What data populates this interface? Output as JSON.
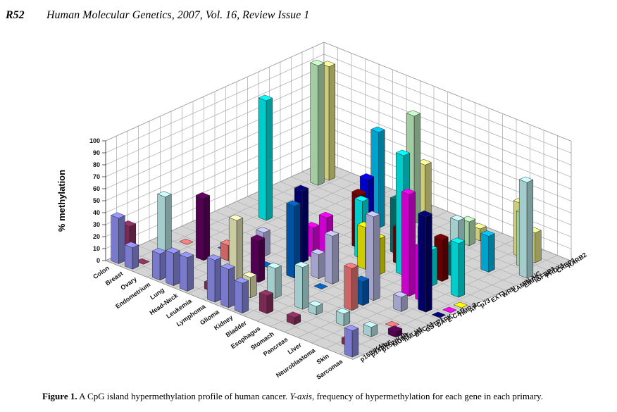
{
  "header": {
    "page": "R52",
    "journal": "Human Molecular Genetics, 2007, Vol. 16, Review Issue 1"
  },
  "chart_data": {
    "type": "bar3d",
    "y_label": "% methylation",
    "ylim": [
      0,
      100
    ],
    "yticks": [
      0,
      10,
      20,
      30,
      40,
      50,
      60,
      70,
      80,
      90,
      100
    ],
    "categories": [
      "Colon",
      "Breast",
      "Ovary",
      "Endometrium",
      "Lung",
      "Head-Neck",
      "Leukemia",
      "Lymphoma",
      "Glioma",
      "Kidney",
      "Bladder",
      "Esophagus",
      "Stomach",
      "Pancreas",
      "Liver",
      "Neuroblastoma",
      "Skin",
      "Sarcomas"
    ],
    "series": [
      {
        "name": "p16INK4a",
        "color": "#9999ff",
        "values": [
          38,
          18,
          null,
          22,
          27,
          28,
          null,
          35,
          32,
          25,
          null,
          null,
          null,
          null,
          null,
          null,
          null,
          22
        ]
      },
      {
        "name": "p14ARF",
        "color": "#993366",
        "values": [
          27,
          0,
          null,
          null,
          null,
          null,
          6,
          null,
          null,
          null,
          15,
          null,
          6,
          null,
          null,
          null,
          5,
          null
        ]
      },
      {
        "name": "p15INK4b",
        "color": "#ffffcc",
        "values": [
          null,
          null,
          0,
          null,
          null,
          null,
          null,
          60,
          17,
          null,
          null,
          null,
          null,
          null,
          null,
          null,
          null,
          null
        ]
      },
      {
        "name": "MGMT",
        "color": "#ccffff",
        "values": [
          null,
          48,
          null,
          null,
          null,
          null,
          null,
          null,
          null,
          25,
          null,
          35,
          7,
          null,
          10,
          null,
          8,
          null
        ]
      },
      {
        "name": "hMLH1",
        "color": "#660066",
        "values": [
          null,
          null,
          null,
          52,
          null,
          null,
          null,
          35,
          null,
          null,
          null,
          null,
          null,
          null,
          null,
          null,
          null,
          5
        ]
      },
      {
        "name": "BRCA1",
        "color": "#ff8080",
        "values": [
          null,
          0,
          null,
          null,
          13,
          null,
          null,
          null,
          null,
          null,
          null,
          null,
          null,
          35,
          null,
          null,
          0,
          null
        ]
      },
      {
        "name": "GSTP1",
        "color": "#0066cc",
        "values": [
          null,
          null,
          null,
          0,
          null,
          null,
          0,
          null,
          60,
          null,
          0,
          null,
          null,
          20,
          null,
          null,
          null,
          null
        ]
      },
      {
        "name": "DAPK",
        "color": "#ccccff",
        "values": [
          null,
          null,
          null,
          0,
          null,
          20,
          null,
          null,
          null,
          20,
          40,
          null,
          null,
          70,
          null,
          12,
          null,
          null
        ]
      },
      {
        "name": "E-CAD",
        "color": "#000080",
        "values": [
          null,
          null,
          null,
          null,
          null,
          null,
          null,
          60,
          null,
          null,
          null,
          null,
          null,
          null,
          null,
          null,
          80,
          0
        ]
      },
      {
        "name": "TIMP-3",
        "color": "#ff00ff",
        "values": [
          null,
          null,
          null,
          null,
          null,
          null,
          null,
          25,
          38,
          null,
          null,
          null,
          null,
          null,
          85,
          45,
          null,
          0
        ]
      },
      {
        "name": "APC",
        "color": "#ffff00",
        "values": [
          null,
          null,
          null,
          null,
          null,
          null,
          null,
          null,
          null,
          null,
          35,
          30,
          null,
          null,
          null,
          null,
          null,
          0
        ]
      },
      {
        "name": "p73",
        "color": "#00ffff",
        "values": [
          null,
          null,
          100,
          null,
          null,
          null,
          null,
          null,
          null,
          48,
          null,
          null,
          100,
          null,
          30,
          null,
          45,
          null
        ]
      },
      {
        "name": "EXT1",
        "color": "#800000",
        "values": [
          null,
          null,
          null,
          null,
          null,
          null,
          null,
          null,
          45,
          null,
          null,
          30,
          null,
          null,
          35,
          null,
          null,
          null
        ]
      },
      {
        "name": "WRN",
        "color": "#008080",
        "values": [
          null,
          null,
          null,
          null,
          null,
          null,
          null,
          null,
          null,
          null,
          45,
          null,
          30,
          null,
          25,
          null,
          null,
          null
        ]
      },
      {
        "name": "LAMIN A/C",
        "color": "#0000ff",
        "values": [
          null,
          null,
          null,
          null,
          null,
          null,
          null,
          45,
          null,
          null,
          null,
          null,
          null,
          null,
          null,
          null,
          null,
          null
        ]
      },
      {
        "name": "EMP3",
        "color": "#00ccff",
        "values": [
          null,
          null,
          null,
          null,
          null,
          null,
          null,
          80,
          null,
          null,
          null,
          null,
          null,
          null,
          null,
          30,
          null,
          null
        ]
      },
      {
        "name": "IGFBP3",
        "color": "#ccffff",
        "values": [
          null,
          null,
          null,
          null,
          null,
          null,
          null,
          null,
          null,
          null,
          null,
          null,
          25,
          null,
          null,
          null,
          null,
          80
        ]
      },
      {
        "name": "PRDX1",
        "color": "#ccffcc",
        "values": [
          null,
          100,
          null,
          null,
          null,
          null,
          null,
          null,
          90,
          null,
          null,
          null,
          20,
          null,
          null,
          null,
          45,
          null
        ]
      },
      {
        "name": "CRBP1",
        "color": "#ffff99",
        "values": [
          null,
          95,
          null,
          null,
          null,
          null,
          null,
          null,
          45,
          null,
          null,
          null,
          10,
          null,
          null,
          45,
          25,
          null
        ]
      },
      {
        "name": "RARB2",
        "color": "#99ccff",
        "values": [
          null,
          null,
          null,
          null,
          null,
          null,
          null,
          null,
          null,
          null,
          null,
          null,
          null,
          null,
          null,
          null,
          null,
          null
        ]
      }
    ]
  },
  "caption": {
    "label": "Figure 1.",
    "text_1": "A CpG island hypermethylation profile of human cancer.",
    "italic": "Y-axis,",
    "text_2": "frequency of hypermethylation for each gene in each primary."
  }
}
